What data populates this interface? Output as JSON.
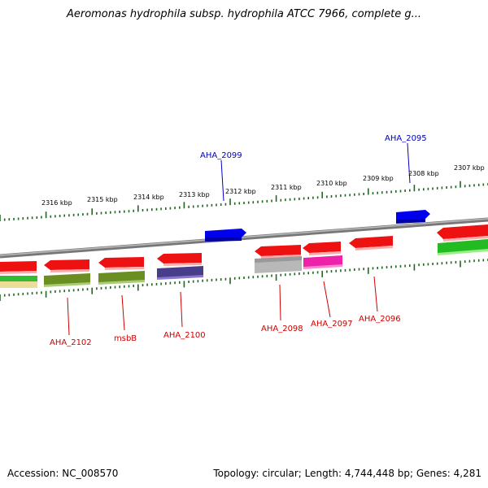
{
  "title": "Aeromonas hydrophila subsp. hydrophila ATCC 7966, complete g...",
  "footer": {
    "accession": "Accession: NC_008570",
    "summary": "Topology: circular; Length: 4,744,448 bp; Genes: 4,281"
  },
  "colors": {
    "forward_label": "#0000bb",
    "reverse_label": "#cc0000",
    "backbone": "#888888",
    "ruler": "#226622"
  },
  "scale_labels": [
    "2316 kbp",
    "2315 kbp",
    "2314 kbp",
    "2313 kbp",
    "2312 kbp",
    "2311 kbp",
    "2310 kbp",
    "2309 kbp",
    "2308 kbp",
    "2307 kbp"
  ],
  "gene_labels": {
    "forward": [
      "AHA_2099",
      "AHA_2095"
    ],
    "reverse": [
      "AHA_2102",
      "msbB",
      "AHA_2100",
      "AHA_2098",
      "AHA_2097",
      "AHA_2096"
    ]
  }
}
